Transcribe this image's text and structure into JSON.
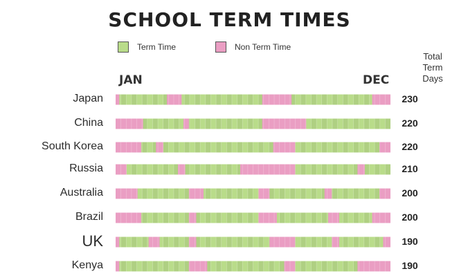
{
  "chart_data": {
    "type": "bar",
    "title": "SCHOOL TERM TIMES",
    "legend": [
      {
        "label": "Term Time",
        "color": "#b9dc8a"
      },
      {
        "label": "Non Term Time",
        "color": "#ea9ec3"
      }
    ],
    "axis_start_label": "JAN",
    "axis_end_label": "DEC",
    "total_header": [
      "Total",
      "Term",
      "Days"
    ],
    "weeks_in_year": 52,
    "categories": [
      "Japan",
      "China",
      "South Korea",
      "Russia",
      "Australia",
      "Brazil",
      "UK",
      "Kenya"
    ],
    "series": [
      {
        "name": "Japan",
        "total_term_days": "230",
        "non_term_ranges": [
          [
            0,
            1
          ],
          [
            14,
            18
          ],
          [
            40,
            48
          ],
          [
            70,
            75
          ]
        ]
      },
      {
        "name": "China",
        "total_term_days": "220",
        "non_term_ranges": [
          [
            0,
            7.5
          ],
          [
            18.5,
            20
          ],
          [
            40,
            52
          ]
        ]
      },
      {
        "name": "South Korea",
        "total_term_days": "220",
        "non_term_ranges": [
          [
            0,
            7
          ],
          [
            11,
            13
          ],
          [
            43,
            49
          ],
          [
            72,
            75
          ]
        ]
      },
      {
        "name": "Russia",
        "total_term_days": "210",
        "non_term_ranges": [
          [
            0,
            3
          ],
          [
            17,
            19
          ],
          [
            34,
            49
          ],
          [
            66,
            68
          ]
        ]
      },
      {
        "name": "Australia",
        "total_term_days": "200",
        "non_term_ranges": [
          [
            0,
            6
          ],
          [
            20,
            24
          ],
          [
            39,
            42
          ],
          [
            57,
            59
          ],
          [
            72,
            75
          ]
        ]
      },
      {
        "name": "Brazil",
        "total_term_days": "200",
        "non_term_ranges": [
          [
            0,
            7
          ],
          [
            20,
            22
          ],
          [
            39,
            44
          ],
          [
            58,
            61
          ],
          [
            70,
            75
          ]
        ]
      },
      {
        "name": "UK",
        "total_term_days": "190",
        "non_term_ranges": [
          [
            0,
            1
          ],
          [
            9,
            12
          ],
          [
            20,
            22
          ],
          [
            42,
            49
          ],
          [
            59,
            61
          ],
          [
            73,
            75
          ]
        ]
      },
      {
        "name": "Kenya",
        "total_term_days": "190",
        "non_term_ranges": [
          [
            0,
            1
          ],
          [
            20,
            25
          ],
          [
            46,
            49
          ],
          [
            66,
            75
          ]
        ]
      }
    ]
  }
}
